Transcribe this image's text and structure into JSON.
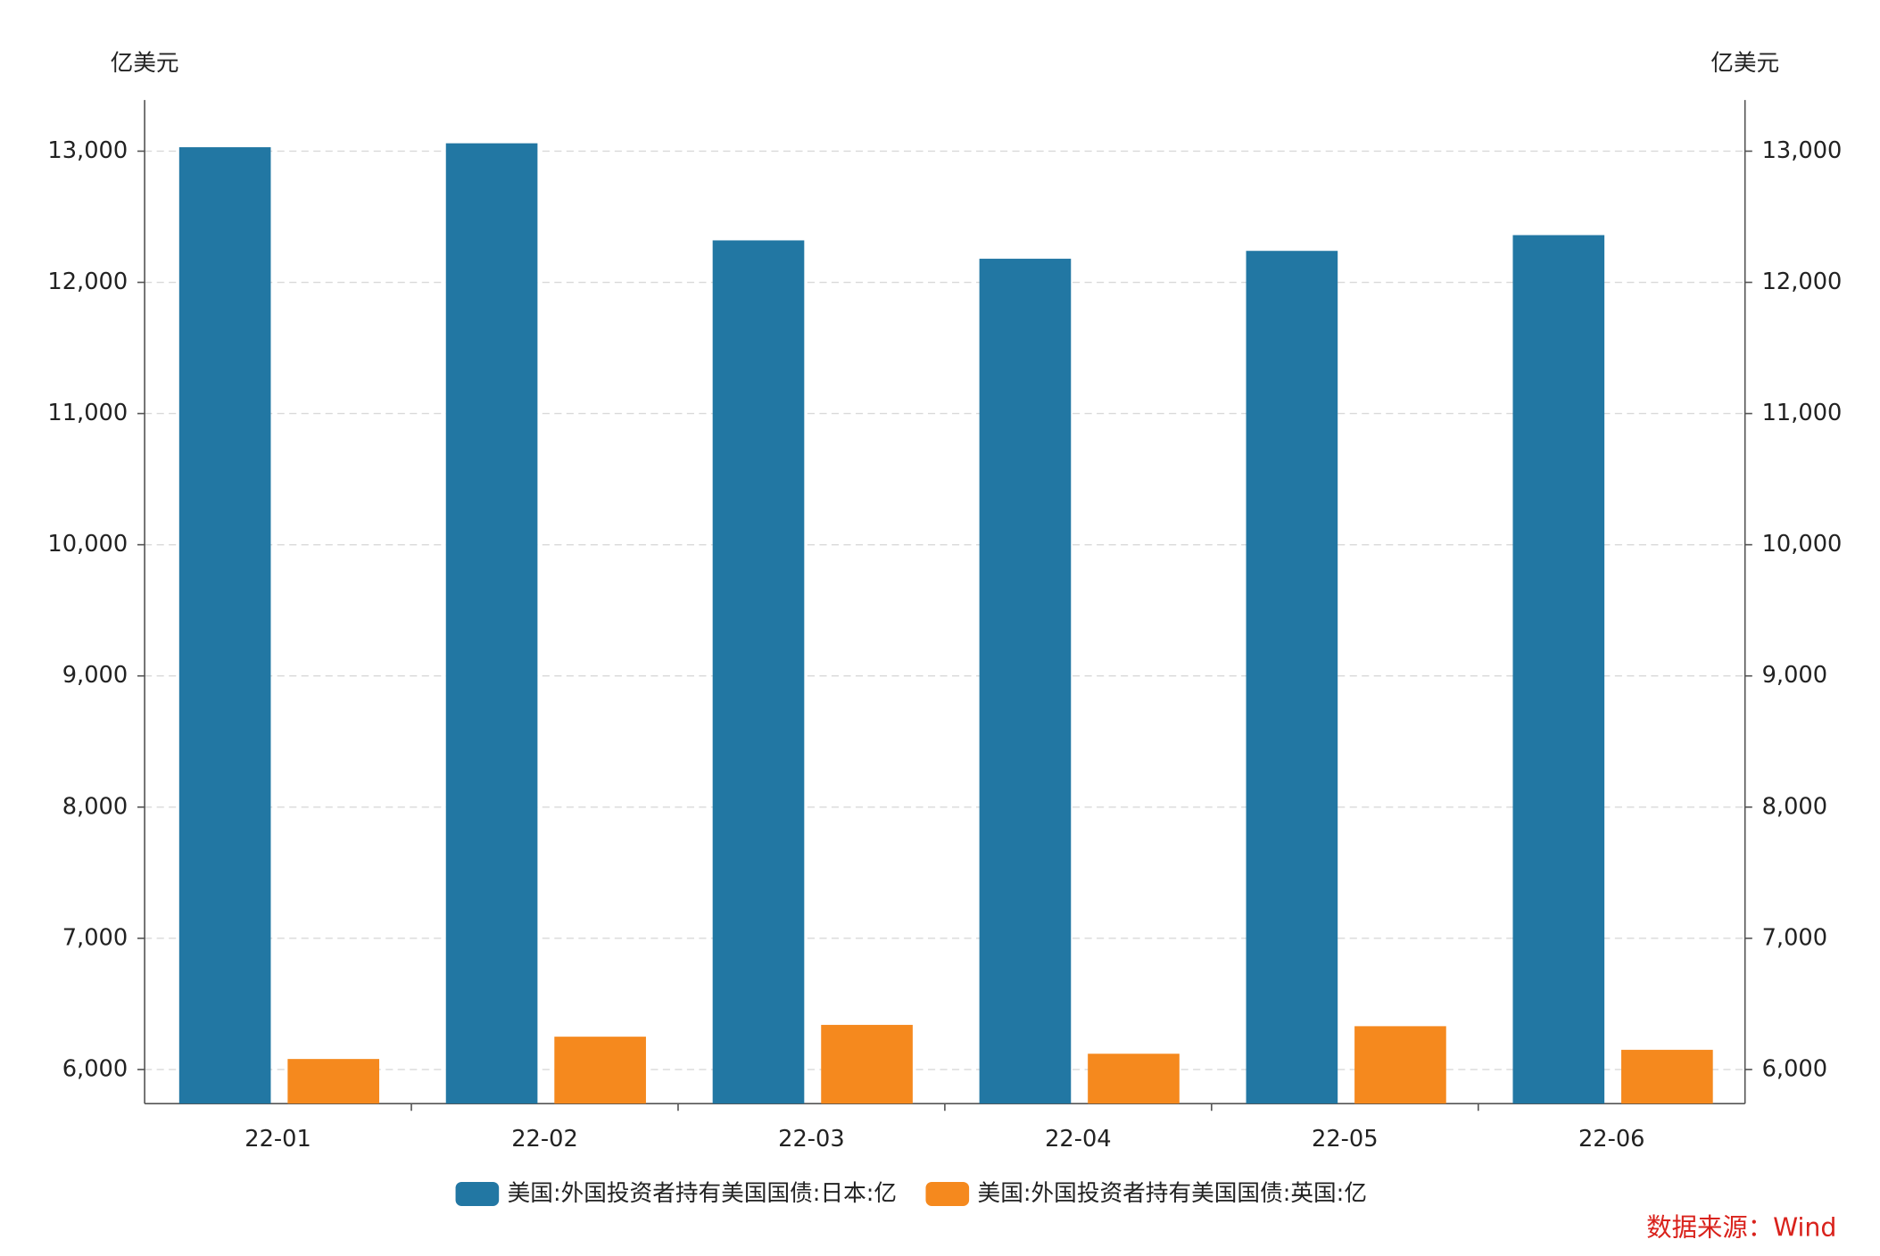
{
  "chart_data": {
    "type": "bar",
    "y_label": "亿美元",
    "y2_label": "亿美元",
    "categories": [
      "22-01",
      "22-02",
      "22-03",
      "22-04",
      "22-05",
      "22-06"
    ],
    "series": [
      {
        "name": "美国:外国投资者持有美国国债:日本:亿",
        "color": "#2277a3",
        "values": [
          13030,
          13060,
          12320,
          12180,
          12240,
          12360
        ]
      },
      {
        "name": "美国:外国投资者持有美国国债:英国:亿",
        "color": "#f5891e",
        "values": [
          6080,
          6250,
          6340,
          6120,
          6330,
          6150
        ]
      }
    ],
    "ylim": [
      5740,
      13390
    ],
    "yticks": [
      {
        "value": 6000,
        "label": "6,000"
      },
      {
        "value": 7000,
        "label": "7,000"
      },
      {
        "value": 8000,
        "label": "8,000"
      },
      {
        "value": 9000,
        "label": "9,000"
      },
      {
        "value": 10000,
        "label": "10,000"
      },
      {
        "value": 11000,
        "label": "11,000"
      },
      {
        "value": 12000,
        "label": "12,000"
      },
      {
        "value": 13000,
        "label": "13,000"
      }
    ],
    "y2lim": [
      5740,
      13390
    ],
    "y2ticks": [
      {
        "value": 6000,
        "label": "6,000"
      },
      {
        "value": 7000,
        "label": "7,000"
      },
      {
        "value": 8000,
        "label": "8,000"
      },
      {
        "value": 9000,
        "label": "9,000"
      },
      {
        "value": 10000,
        "label": "10,000"
      },
      {
        "value": 11000,
        "label": "11,000"
      },
      {
        "value": 12000,
        "label": "12,000"
      },
      {
        "value": 13000,
        "label": "13,000"
      }
    ],
    "grid": true,
    "legend": "bottom",
    "source": "数据来源：Wind"
  }
}
